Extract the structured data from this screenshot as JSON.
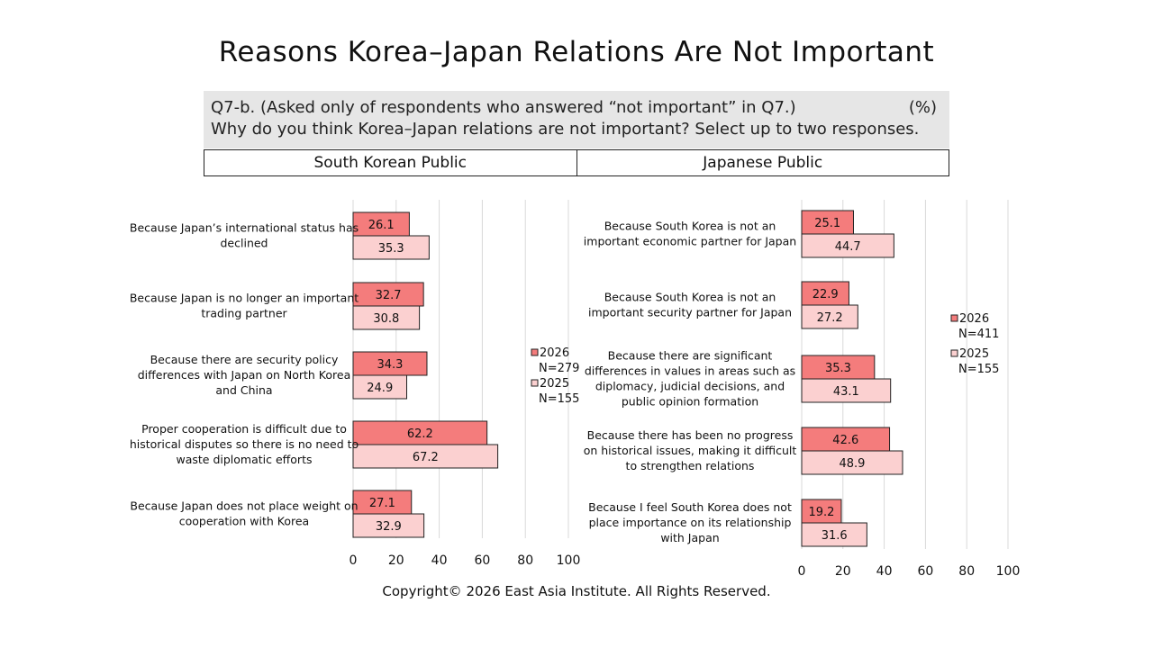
{
  "title": "Reasons Korea–Japan Relations Are Not Important",
  "question": {
    "line1": "Q7-b. (Asked only of respondents who answered “not important” in Q7.)",
    "line2": "Why do you think Korea–Japan relations are not important? Select up to two responses.",
    "unit": "(%)"
  },
  "headers": {
    "left": "South Korean Public",
    "right": "Japanese Public"
  },
  "footer": "Copyright© 2026 East Asia Institute. All Rights Reserved.",
  "colors": {
    "y2026": "#f47c7c",
    "y2025": "#fbd0d0",
    "grid": "#d9d9d9",
    "border": "#222222"
  },
  "chart_data": [
    {
      "type": "bar",
      "orientation": "horizontal",
      "title": "South Korean Public",
      "categories": [
        [
          "Because Japan’s international status has",
          "declined"
        ],
        [
          "Because Japan is no longer an important",
          "trading partner"
        ],
        [
          "Because there are security policy",
          "differences with Japan on North Korea",
          "and China"
        ],
        [
          "Proper cooperation is difficult due to",
          "historical disputes so there is no need to",
          "waste diplomatic efforts"
        ],
        [
          "Because Japan does not place weight on",
          "cooperation with Korea"
        ]
      ],
      "series": [
        {
          "name": "2026",
          "n": "N=279",
          "values": [
            26.1,
            32.7,
            34.3,
            62.2,
            27.1
          ]
        },
        {
          "name": "2025",
          "n": "N=155",
          "values": [
            35.3,
            30.8,
            24.9,
            67.2,
            32.9
          ]
        }
      ],
      "xlim": [
        0,
        100
      ],
      "ticks": [
        0,
        20,
        40,
        60,
        80,
        100
      ],
      "grid": true,
      "legend": "right"
    },
    {
      "type": "bar",
      "orientation": "horizontal",
      "title": "Japanese Public",
      "categories": [
        [
          "Because South Korea is not an",
          "important economic partner for Japan"
        ],
        [
          "Because South Korea is not an",
          "important security partner for Japan"
        ],
        [
          "Because there are significant",
          "differences in values in areas such as",
          "diplomacy, judicial decisions, and",
          "public opinion formation"
        ],
        [
          "Because there has been no progress",
          "on historical issues, making it difficult",
          "to strengthen relations"
        ],
        [
          "Because I feel South Korea does not",
          "place importance on its relationship",
          "with Japan"
        ]
      ],
      "series": [
        {
          "name": "2026",
          "n": "N=411",
          "values": [
            25.1,
            22.9,
            35.3,
            42.6,
            19.2
          ]
        },
        {
          "name": "2025",
          "n": "N=155",
          "values": [
            44.7,
            27.2,
            43.1,
            48.9,
            31.6
          ]
        }
      ],
      "xlim": [
        0,
        100
      ],
      "ticks": [
        0,
        20,
        40,
        60,
        80,
        100
      ],
      "grid": true,
      "legend": "right"
    }
  ]
}
